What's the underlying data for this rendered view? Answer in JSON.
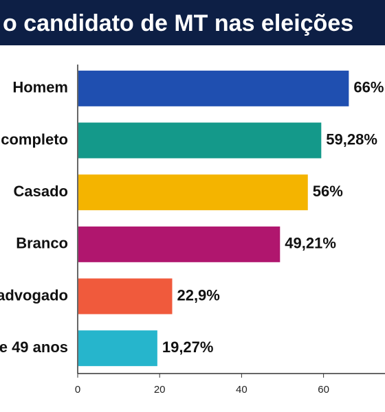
{
  "chart_data": {
    "type": "hbar",
    "title": "o candidato de MT nas eleições",
    "categories": [
      "Homem",
      "completo",
      "Casado",
      "Branco",
      "advogado",
      "e 49 anos"
    ],
    "values": [
      66,
      59.28,
      56,
      49.21,
      22.9,
      19.27
    ],
    "value_labels": [
      "66%",
      "59,28%",
      "56%",
      "49,21%",
      "22,9%",
      "19,27%"
    ],
    "colors": [
      "#1f4fb0",
      "#14998a",
      "#f4b400",
      "#b0166e",
      "#f05a3c",
      "#26b5cc"
    ],
    "xlim": [
      0,
      75
    ],
    "xticks": [
      0,
      20,
      40,
      60
    ]
  }
}
